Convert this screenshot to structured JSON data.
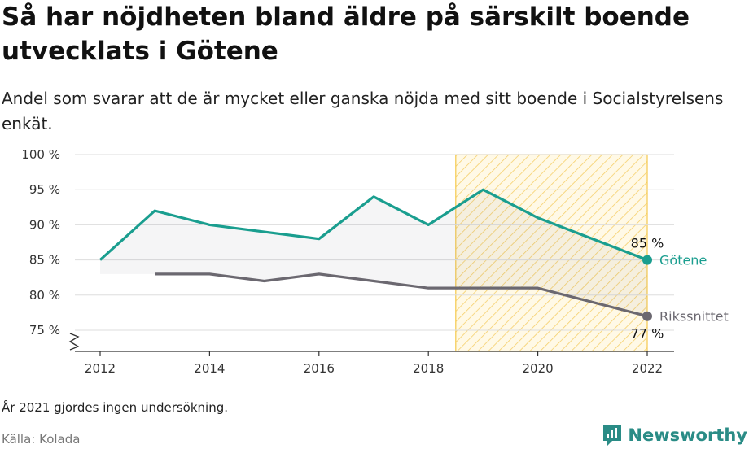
{
  "header": {
    "title": "Så har nöjdheten bland äldre på särskilt boende utvecklats i Götene",
    "subtitle": "Andel som svarar att de är mycket eller ganska nöjda med sitt boende i Socialstyrelsens enkät."
  },
  "footer": {
    "note": "År 2021 gjordes ingen undersökning.",
    "source": "Källa: Kolada",
    "brand": "Newsworthy"
  },
  "colors": {
    "gotene": "#1a9e8f",
    "riks": "#6b6870",
    "highlight": "#f5c94c",
    "grid": "#dddddd"
  },
  "chart_data": {
    "type": "line",
    "x_ticks": [
      2012,
      2014,
      2016,
      2018,
      2020,
      2022
    ],
    "y_ticks": [
      75,
      80,
      85,
      90,
      95,
      100
    ],
    "y_tick_labels": [
      "75 %",
      "80 %",
      "85 %",
      "90 %",
      "95 %",
      "100 %"
    ],
    "xlim": [
      2012,
      2022
    ],
    "ylim": [
      75,
      100
    ],
    "y_axis_break": true,
    "grid": true,
    "highlight_range": [
      2018.5,
      2022
    ],
    "series": [
      {
        "name": "Götene",
        "color": "#1a9e8f",
        "x": [
          2012,
          2013,
          2014,
          2015,
          2016,
          2017,
          2018,
          2019,
          2020,
          2022
        ],
        "values": [
          85,
          92,
          90,
          89,
          88,
          94,
          90,
          95,
          91,
          85
        ],
        "end_label": "85 %"
      },
      {
        "name": "Rikssnittet",
        "color": "#6b6870",
        "x": [
          2013,
          2014,
          2015,
          2016,
          2017,
          2018,
          2019,
          2020,
          2022
        ],
        "values": [
          83,
          83,
          82,
          83,
          82,
          81,
          81,
          81,
          77
        ],
        "end_label": "77 %"
      }
    ]
  }
}
